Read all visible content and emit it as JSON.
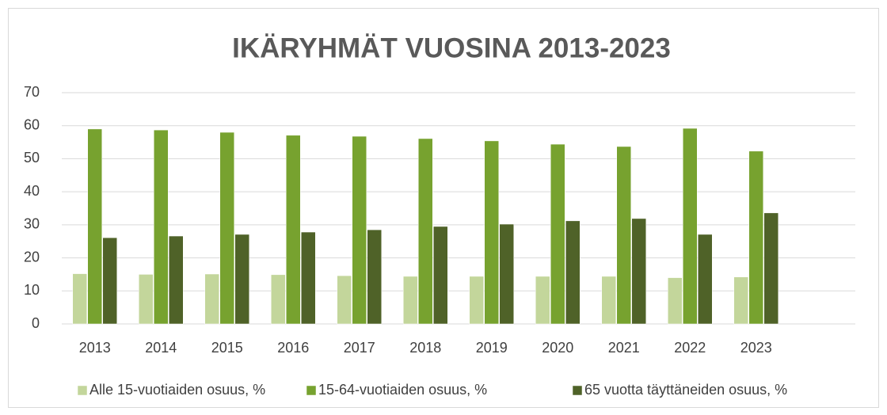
{
  "chart_data": {
    "type": "bar",
    "title": "IKÄRYHMÄT VUOSINA 2013-2023",
    "categories": [
      "2013",
      "2014",
      "2015",
      "2016",
      "2017",
      "2018",
      "2019",
      "2020",
      "2021",
      "2022",
      "2023",
      null
    ],
    "series": [
      {
        "name": "Alle 15-vuotiaiden osuus, %",
        "color": "#c3d69b",
        "values": [
          15.2,
          15.0,
          15.1,
          14.9,
          14.6,
          14.4,
          14.4,
          14.4,
          14.4,
          14.0,
          14.2,
          null
        ]
      },
      {
        "name": "15-64-vuotiaiden osuus, %",
        "color": "#77a22f",
        "values": [
          59.0,
          58.7,
          58.0,
          57.1,
          56.8,
          56.1,
          55.4,
          54.4,
          53.7,
          59.2,
          52.3,
          null
        ]
      },
      {
        "name": "65 vuotta täyttäneiden osuus, %",
        "color": "#4f6228",
        "values": [
          26.1,
          26.6,
          27.1,
          27.8,
          28.5,
          29.5,
          30.2,
          31.2,
          31.9,
          27.1,
          33.6,
          null
        ]
      }
    ],
    "ylim": [
      0,
      70
    ],
    "yticks": [
      0,
      10,
      20,
      30,
      40,
      50,
      60,
      70
    ],
    "grid": true,
    "legend": "bottom"
  }
}
